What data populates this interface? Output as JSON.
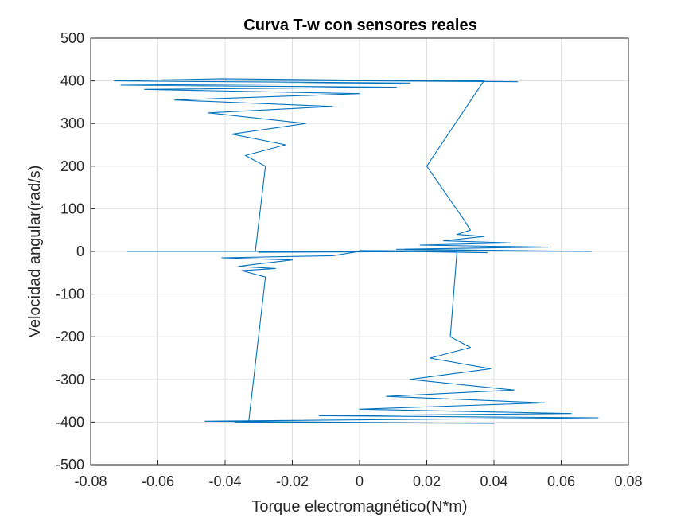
{
  "chart_data": {
    "type": "line",
    "title": "Curva T-w con sensores reales",
    "xlabel": "Torque electromagnético(N*m)",
    "ylabel": "Velocidad angular(rad/s)",
    "xlim": [
      -0.08,
      0.08
    ],
    "ylim": [
      -500,
      500
    ],
    "xticks": [
      -0.08,
      -0.06,
      -0.04,
      -0.02,
      0,
      0.02,
      0.04,
      0.06,
      0.08
    ],
    "yticks": [
      -500,
      -400,
      -300,
      -200,
      -100,
      0,
      100,
      200,
      300,
      400,
      500
    ],
    "xtick_labels": [
      "-0.08",
      "-0.06",
      "-0.04",
      "-0.02",
      "0",
      "0.02",
      "0.04",
      "0.06",
      "0.08"
    ],
    "ytick_labels": [
      "-500",
      "-400",
      "-300",
      "-200",
      "-100",
      "0",
      "100",
      "200",
      "300",
      "400",
      "500"
    ],
    "grid": true,
    "line_color": "#0072BD",
    "series": [
      {
        "x": [
          0.0,
          -0.031,
          -0.028,
          -0.034,
          -0.022,
          -0.038,
          -0.016,
          -0.045,
          -0.008,
          -0.055,
          0.0,
          -0.064,
          0.011,
          -0.071,
          0.015,
          -0.073,
          -0.041,
          0.047,
          -0.04,
          0.037,
          0.02,
          0.031,
          0.033,
          0.029,
          0.037,
          0.025,
          0.045,
          0.018,
          0.056,
          0.011,
          0.069,
          0.0,
          0.038,
          0.005,
          -0.02,
          0.02,
          -0.069,
          0.0,
          -0.03,
          0.029,
          0.027,
          0.033,
          0.021,
          0.039,
          0.015,
          0.046,
          0.008,
          0.055,
          0.0,
          0.063,
          -0.012,
          0.071,
          -0.046,
          0.04,
          -0.037,
          -0.033,
          -0.028,
          -0.035,
          -0.025,
          -0.036,
          -0.031,
          -0.02,
          -0.041,
          -0.008,
          0.0
        ],
        "y": [
          0,
          0,
          200,
          225,
          250,
          275,
          300,
          325,
          340,
          355,
          370,
          380,
          385,
          390,
          395,
          400,
          405,
          398,
          402,
          400,
          200,
          75,
          50,
          40,
          35,
          25,
          20,
          15,
          10,
          5,
          0,
          2,
          -3,
          1,
          0,
          0,
          0,
          0,
          -2,
          0,
          -200,
          -225,
          -250,
          -275,
          -300,
          -325,
          -340,
          -355,
          -370,
          -380,
          -385,
          -390,
          -398,
          -403,
          -400,
          -400,
          -60,
          -45,
          -40,
          -35,
          -30,
          -20,
          -15,
          -10,
          0
        ]
      }
    ]
  }
}
